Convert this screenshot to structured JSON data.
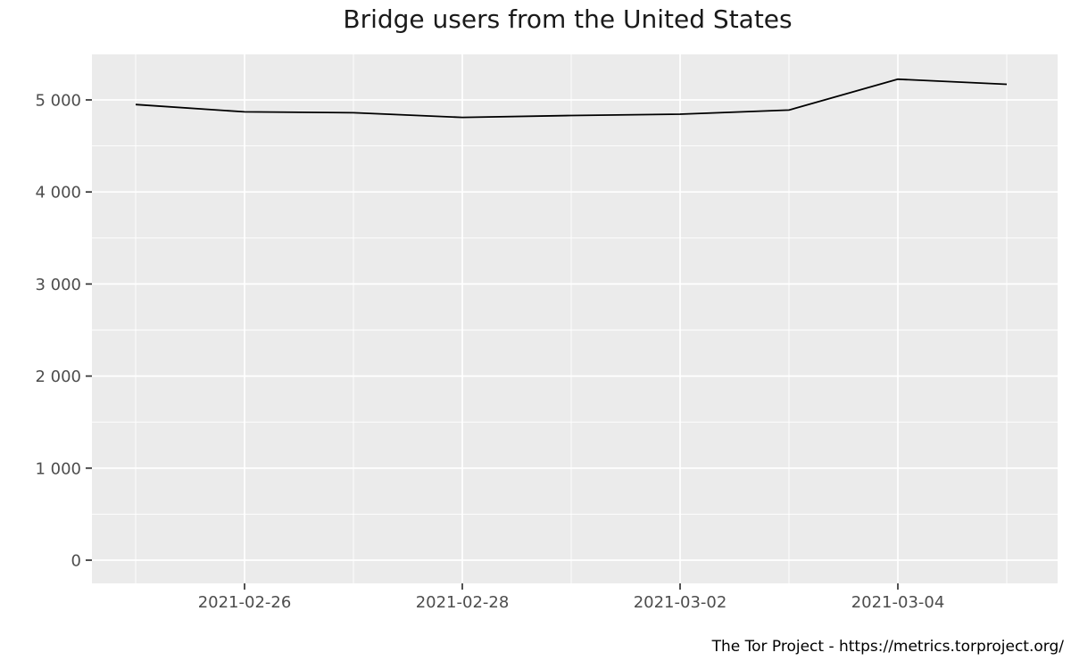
{
  "title": "Bridge users from the United States",
  "caption": "The Tor Project - https://metrics.torproject.org/",
  "chart_data": {
    "type": "line",
    "title": "Bridge users from the United States",
    "caption": "The Tor Project - https://metrics.torproject.org/",
    "xlabel": "",
    "ylabel": "",
    "legend": "none",
    "x": [
      "2021-02-25",
      "2021-02-26",
      "2021-02-27",
      "2021-02-28",
      "2021-03-01",
      "2021-03-02",
      "2021-03-03",
      "2021-03-04",
      "2021-03-05"
    ],
    "series": [
      {
        "name": "bridge-users-united-states",
        "values": [
          4950,
          4870,
          4860,
          4810,
          4830,
          4845,
          4890,
          5225,
          5170
        ]
      }
    ],
    "x_ticks": [
      {
        "index": 1,
        "label": "2021-02-26"
      },
      {
        "index": 3,
        "label": "2021-02-28"
      },
      {
        "index": 5,
        "label": "2021-03-02"
      },
      {
        "index": 7,
        "label": "2021-03-04"
      }
    ],
    "x_minor_indices": [
      0,
      2,
      4,
      6,
      8
    ],
    "y_ticks": [
      {
        "value": 0,
        "label": "0"
      },
      {
        "value": 1000,
        "label": "1 000"
      },
      {
        "value": 2000,
        "label": "2 000"
      },
      {
        "value": 3000,
        "label": "3 000"
      },
      {
        "value": 4000,
        "label": "4 000"
      },
      {
        "value": 5000,
        "label": "5 000"
      }
    ],
    "y_minor_values": [
      500,
      1500,
      2500,
      3500,
      4500,
      5500
    ],
    "ylim": [
      -260,
      5510
    ],
    "grid": {
      "major": true,
      "minor": true
    },
    "colors": {
      "line": "#000000",
      "panel_background": "#EBEBEB",
      "gridline": "#FFFFFF",
      "axis_text": "#4D4D4D",
      "tick_mark": "#333333",
      "title": "#1A1A1A",
      "caption": "#000000",
      "page_background": "#FFFFFF"
    }
  }
}
